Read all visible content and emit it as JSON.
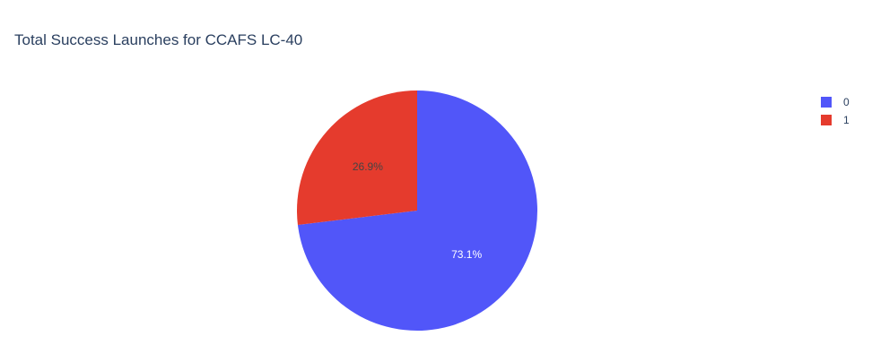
{
  "chart_data": {
    "type": "pie",
    "title": "Total Success Launches for CCAFS LC-40",
    "slices": [
      {
        "label": "0",
        "percent": 73.1,
        "percent_text": "73.1%",
        "color": "#5156f9",
        "text_color": "#ffffff"
      },
      {
        "label": "1",
        "percent": 26.9,
        "percent_text": "26.9%",
        "color": "#e53b2d",
        "text_color": "#444444"
      }
    ],
    "direction": "clockwise",
    "start_angle_deg": 0,
    "legend": {
      "position": "top-right",
      "entries": [
        "0",
        "1"
      ]
    }
  }
}
